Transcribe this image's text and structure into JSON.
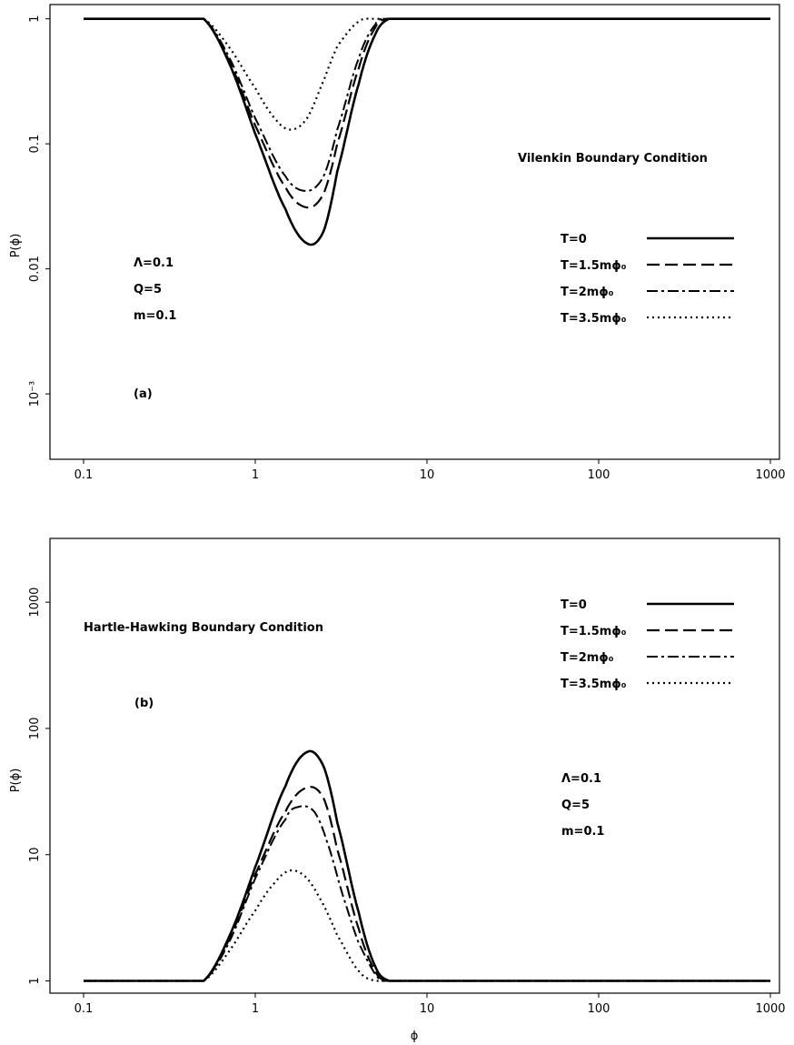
{
  "chart_data": [
    {
      "type": "line",
      "panel_label": "(a)",
      "title": "Vilenkin Boundary Condition",
      "xlabel": "",
      "ylabel": "P(ϕ)",
      "x_scale": "log",
      "y_scale": "log",
      "xlim": [
        0.1,
        1000
      ],
      "ylim": [
        0.0003,
        1.3
      ],
      "x_ticks": [
        0.1,
        1,
        10,
        100,
        1000
      ],
      "x_tick_labels": [
        "0.1",
        "1",
        "10",
        "100",
        "1000"
      ],
      "y_ticks": [
        0.001,
        0.01,
        0.1,
        1
      ],
      "y_tick_labels": [
        "10⁻³",
        "0.01",
        "0.1",
        "1"
      ],
      "params": [
        "Λ=0.1",
        "Q=5",
        "m=0.1"
      ],
      "legend_position": "right",
      "series": [
        {
          "name": "T=0",
          "style": "solid",
          "x": [
            0.1,
            0.5,
            0.7,
            1,
            1.5,
            2,
            2.5,
            3,
            4,
            5,
            6,
            1000
          ],
          "y": [
            1,
            1,
            0.45,
            0.12,
            0.03,
            0.016,
            0.02,
            0.06,
            0.3,
            0.75,
            1,
            1
          ]
        },
        {
          "name": "T=1.5mϕ₀",
          "style": "dashed",
          "x": [
            0.1,
            0.5,
            0.7,
            1,
            1.5,
            2,
            2.5,
            3,
            4,
            5,
            5.8,
            1000
          ],
          "y": [
            1,
            1,
            0.47,
            0.14,
            0.045,
            0.031,
            0.04,
            0.1,
            0.4,
            0.85,
            1,
            1
          ]
        },
        {
          "name": "T=2mϕ₀",
          "style": "dashdot",
          "x": [
            0.1,
            0.5,
            0.7,
            1,
            1.5,
            2,
            2.5,
            3,
            4,
            5,
            5.6,
            1000
          ],
          "y": [
            1,
            1,
            0.5,
            0.16,
            0.055,
            0.042,
            0.055,
            0.13,
            0.48,
            0.9,
            1,
            1
          ]
        },
        {
          "name": "T=3.5mϕ₀",
          "style": "dotted",
          "x": [
            0.1,
            0.5,
            0.7,
            1,
            1.3,
            1.6,
            2,
            2.5,
            3,
            4,
            5,
            1000
          ],
          "y": [
            1,
            1,
            0.6,
            0.28,
            0.16,
            0.13,
            0.16,
            0.32,
            0.6,
            0.95,
            1,
            1
          ]
        }
      ]
    },
    {
      "type": "line",
      "panel_label": "(b)",
      "title": "Hartle-Hawking Boundary Condition",
      "xlabel": "ϕ",
      "ylabel": "P(ϕ)",
      "x_scale": "log",
      "y_scale": "log",
      "xlim": [
        0.1,
        1000
      ],
      "ylim": [
        0.8,
        3200
      ],
      "x_ticks": [
        0.1,
        1,
        10,
        100,
        1000
      ],
      "x_tick_labels": [
        "0.1",
        "1",
        "10",
        "100",
        "1000"
      ],
      "y_ticks": [
        1,
        10,
        100,
        1000
      ],
      "y_tick_labels": [
        "1",
        "10",
        "100",
        "1000"
      ],
      "params": [
        "Λ=0.1",
        "Q=5",
        "m=0.1"
      ],
      "legend_position": "top-right",
      "series": [
        {
          "name": "T=0",
          "style": "solid",
          "x": [
            0.1,
            0.5,
            0.7,
            1,
            1.5,
            2,
            2.5,
            3,
            4,
            5,
            6,
            1000
          ],
          "y": [
            1,
            1,
            2.2,
            8,
            35,
            65,
            50,
            18,
            3.5,
            1.3,
            1,
            1
          ]
        },
        {
          "name": "T=1.5mϕ₀",
          "style": "dashed",
          "x": [
            0.1,
            0.5,
            0.7,
            1,
            1.5,
            2,
            2.5,
            3,
            4,
            5,
            5.8,
            1000
          ],
          "y": [
            1,
            1,
            2.1,
            7,
            22,
            34,
            28,
            11,
            2.6,
            1.2,
            1,
            1
          ]
        },
        {
          "name": "T=2mϕ₀",
          "style": "dashdot",
          "x": [
            0.1,
            0.5,
            0.7,
            1,
            1.5,
            1.8,
            2.2,
            2.6,
            3.2,
            4,
            5.4,
            1000
          ],
          "y": [
            1,
            1,
            2,
            6.5,
            19,
            24,
            22,
            13,
            5,
            2,
            1,
            1
          ]
        },
        {
          "name": "T=3.5mϕ₀",
          "style": "dotted",
          "x": [
            0.1,
            0.5,
            0.7,
            1,
            1.3,
            1.6,
            2,
            2.5,
            3,
            4,
            5,
            1000
          ],
          "y": [
            1,
            1,
            1.7,
            3.6,
            6,
            7.5,
            6.5,
            4,
            2.3,
            1.2,
            1,
            1
          ]
        }
      ]
    }
  ]
}
